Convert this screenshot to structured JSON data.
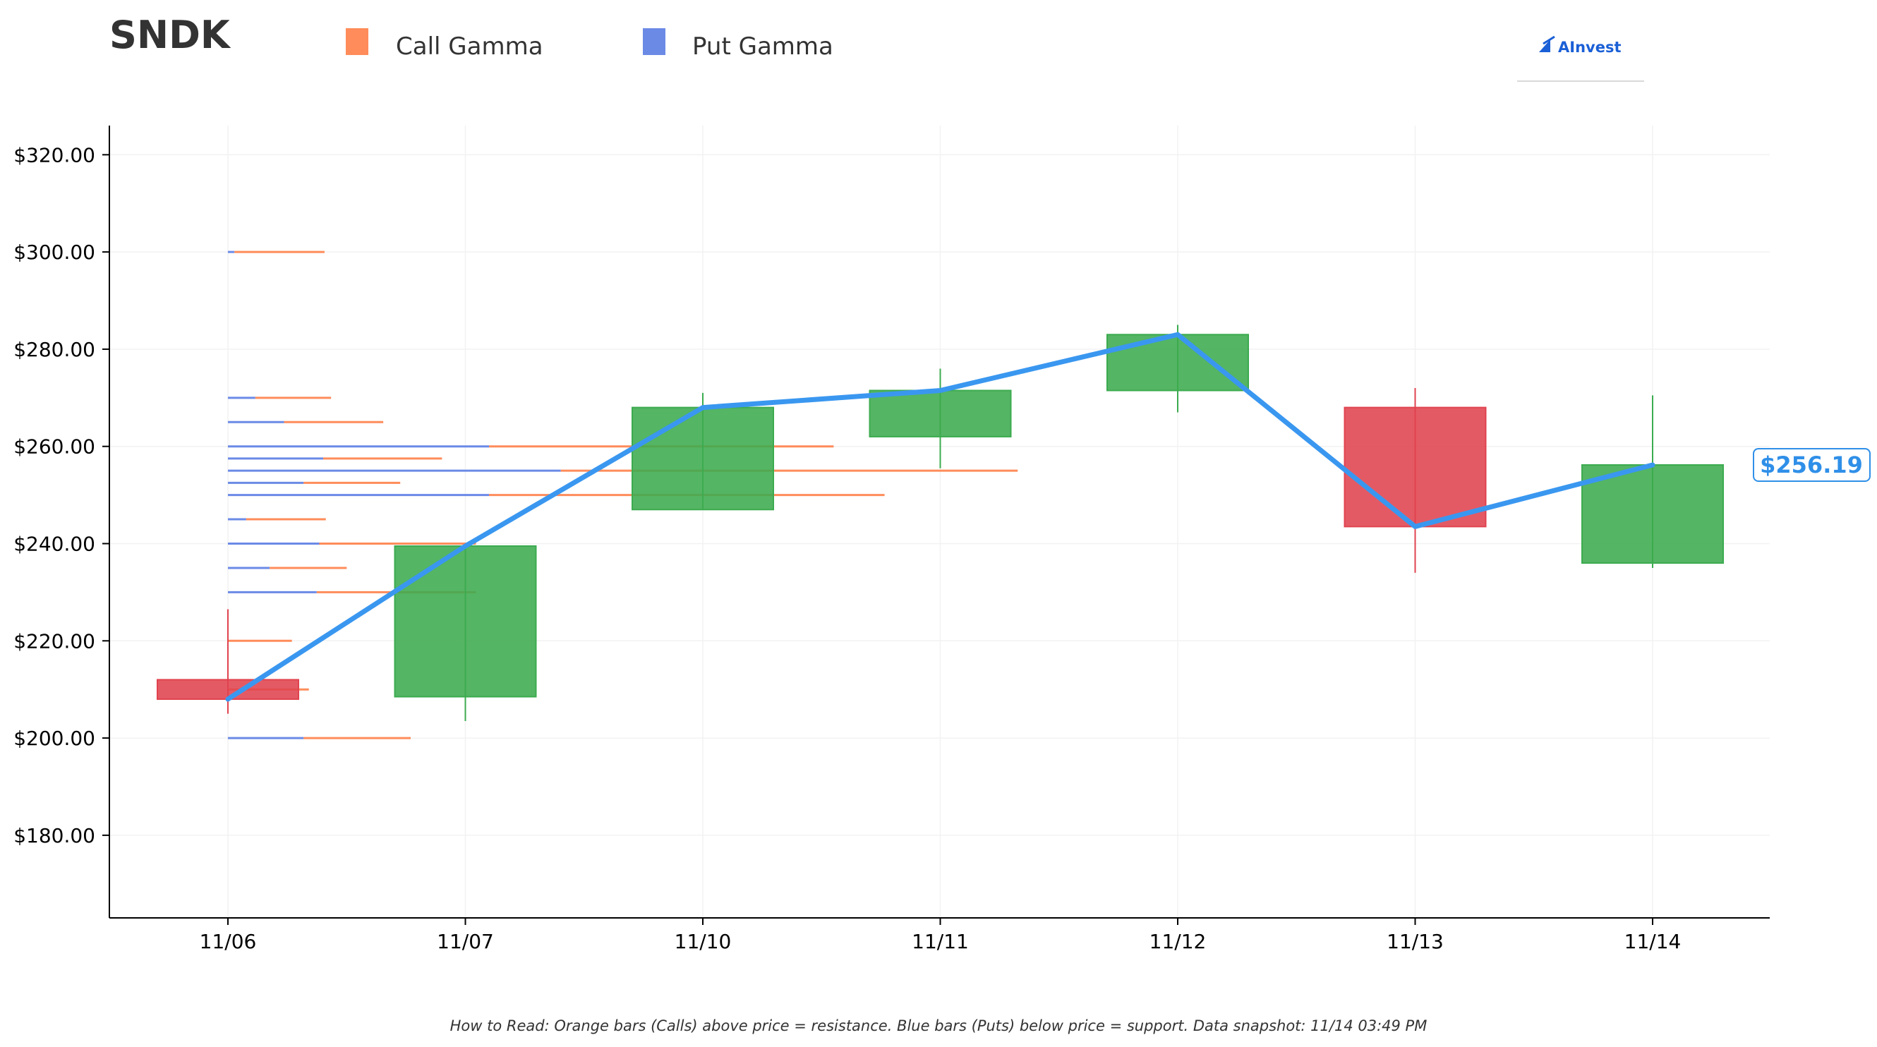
{
  "chart_data": {
    "type": "candlestick",
    "ticker": "SNDK",
    "legend": [
      {
        "name": "Call Gamma",
        "color": "#ff8c5a"
      },
      {
        "name": "Put Gamma",
        "color": "#6b8ae6"
      }
    ],
    "brand": "AInvest",
    "categories": [
      "11/06",
      "11/07",
      "11/10",
      "11/11",
      "11/12",
      "11/13",
      "11/14"
    ],
    "candles": [
      {
        "date": "11/06",
        "open": 212.0,
        "high": 226.5,
        "low": 205.0,
        "close": 208.0
      },
      {
        "date": "11/07",
        "open": 208.5,
        "high": 239.5,
        "low": 203.5,
        "close": 239.5
      },
      {
        "date": "11/10",
        "open": 247.0,
        "high": 271.0,
        "low": 247.0,
        "close": 268.0
      },
      {
        "date": "11/11",
        "open": 262.0,
        "high": 276.0,
        "low": 255.5,
        "close": 271.5
      },
      {
        "date": "11/12",
        "open": 271.5,
        "high": 285.0,
        "low": 267.0,
        "close": 283.0
      },
      {
        "date": "11/13",
        "open": 268.0,
        "high": 272.0,
        "low": 234.0,
        "close": 243.5
      },
      {
        "date": "11/14",
        "open": 236.0,
        "high": 270.5,
        "low": 235.0,
        "close": 256.19
      }
    ],
    "close_line": [
      208.0,
      239.5,
      268.0,
      271.5,
      283.0,
      243.5,
      256.19
    ],
    "current_price_label": "$256.19",
    "current_price": 256.19,
    "gamma_levels": [
      {
        "strike": 300.0,
        "put": 0.05,
        "call": 0.69
      },
      {
        "strike": 270.0,
        "put": 0.21,
        "call": 0.58
      },
      {
        "strike": 265.0,
        "put": 0.43,
        "call": 0.76
      },
      {
        "strike": 260.0,
        "put": 2.0,
        "call": 2.64
      },
      {
        "strike": 257.5,
        "put": 0.73,
        "call": 0.91
      },
      {
        "strike": 255.0,
        "put": 2.55,
        "call": 3.5
      },
      {
        "strike": 252.5,
        "put": 0.58,
        "call": 0.74
      },
      {
        "strike": 250.0,
        "put": 2.0,
        "call": 3.03
      },
      {
        "strike": 245.0,
        "put": 0.14,
        "call": 0.61
      },
      {
        "strike": 240.0,
        "put": 0.7,
        "call": 1.2
      },
      {
        "strike": 235.0,
        "put": 0.32,
        "call": 0.59
      },
      {
        "strike": 230.0,
        "put": 0.68,
        "call": 1.22
      },
      {
        "strike": 220.0,
        "put": 0.0,
        "call": 0.49
      },
      {
        "strike": 210.0,
        "put": 0.0,
        "call": 0.62
      },
      {
        "strike": 200.0,
        "put": 0.58,
        "call": 0.82
      }
    ],
    "yticks": [
      180,
      200,
      220,
      240,
      260,
      280,
      300,
      320
    ],
    "ytick_labels": [
      "$180.00",
      "$200.00",
      "$220.00",
      "$240.00",
      "$260.00",
      "$280.00",
      "$300.00",
      "$320.00"
    ],
    "ylim": [
      163,
      326
    ],
    "grid": true,
    "legend_position": "top-left",
    "up_color": "#3cab4f",
    "down_color": "#e0434f",
    "line_color": "#3a97f0",
    "xlabel": "",
    "ylabel": ""
  },
  "footnote": "How to Read: Orange bars (Calls) above price = resistance. Blue bars (Puts) below price = support. Data snapshot: 11/14 03:49 PM"
}
